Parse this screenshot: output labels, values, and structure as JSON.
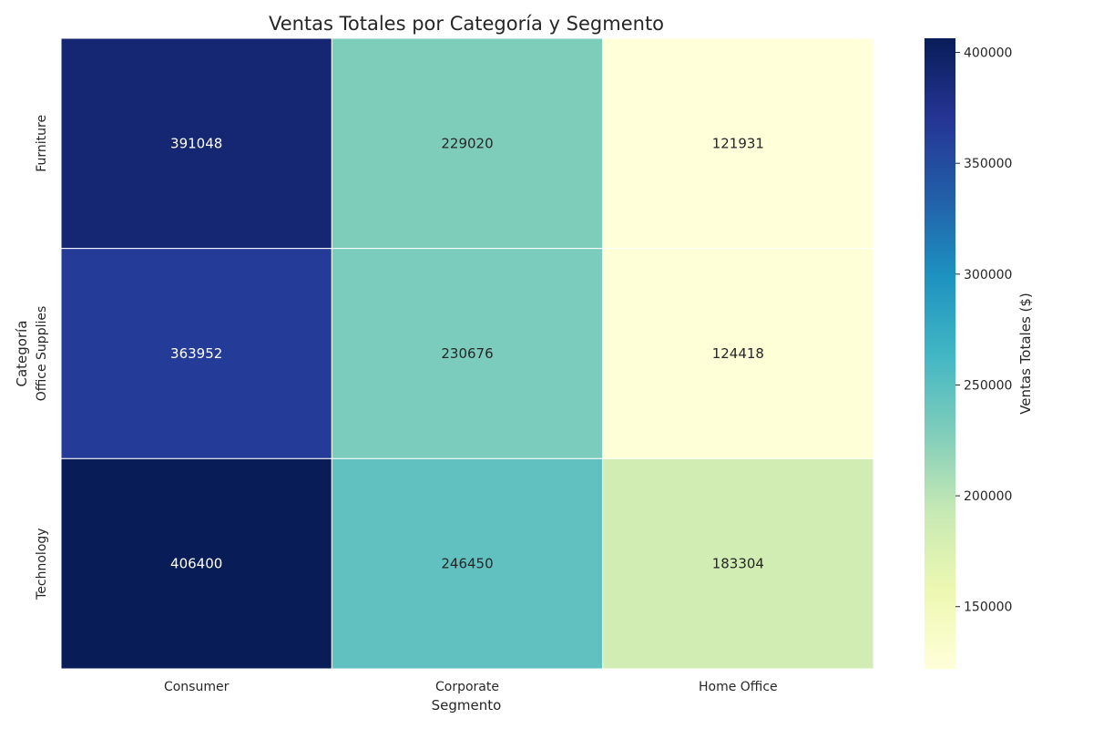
{
  "chart_data": {
    "type": "heatmap",
    "title": "Ventas Totales por Categoría y Segmento",
    "xlabel": "Segmento",
    "ylabel": "Categoría",
    "x_categories": [
      "Consumer",
      "Corporate",
      "Home Office"
    ],
    "y_categories": [
      "Furniture",
      "Office Supplies",
      "Technology"
    ],
    "values": [
      [
        391048,
        229020,
        121931
      ],
      [
        363952,
        230676,
        124418
      ],
      [
        406400,
        246450,
        183304
      ]
    ],
    "colormap": "YlGnBu",
    "colorbar": {
      "label": "Ventas Totales ($)",
      "ticks": [
        150000,
        200000,
        250000,
        300000,
        350000,
        400000
      ],
      "range": [
        121931,
        406400
      ]
    },
    "annotations": true,
    "grid": false
  }
}
